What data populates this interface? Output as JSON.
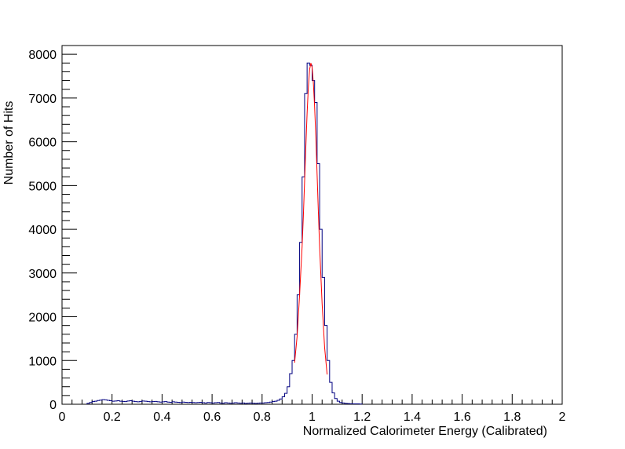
{
  "chart_data": {
    "type": "histogram",
    "title": "",
    "xlabel": "Normalized Calorimeter Energy (Calibrated)",
    "ylabel": "Number of Hits",
    "xlim": [
      0,
      2
    ],
    "ylim": [
      0,
      8200
    ],
    "x_ticks": [
      0,
      0.2,
      0.4,
      0.6,
      0.8,
      1,
      1.2,
      1.4,
      1.6,
      1.8,
      2
    ],
    "x_tick_labels": [
      "0",
      "0.2",
      "0.4",
      "0.6",
      "0.8",
      "1",
      "1.2",
      "1.4",
      "1.6",
      "1.8",
      "2"
    ],
    "y_ticks": [
      0,
      1000,
      2000,
      3000,
      4000,
      5000,
      6000,
      7000,
      8000
    ],
    "y_tick_labels": [
      "0",
      "1000",
      "2000",
      "3000",
      "4000",
      "5000",
      "6000",
      "7000",
      "8000"
    ],
    "grid": false,
    "legend": "none",
    "bin_width": 0.01,
    "series": [
      {
        "type": "step",
        "color": "#000080",
        "x": [
          0.1,
          0.11,
          0.12,
          0.13,
          0.14,
          0.15,
          0.16,
          0.17,
          0.18,
          0.19,
          0.2,
          0.21,
          0.22,
          0.23,
          0.24,
          0.25,
          0.26,
          0.27,
          0.28,
          0.29,
          0.3,
          0.31,
          0.32,
          0.33,
          0.34,
          0.35,
          0.36,
          0.37,
          0.38,
          0.39,
          0.4,
          0.41,
          0.42,
          0.43,
          0.44,
          0.45,
          0.46,
          0.47,
          0.48,
          0.49,
          0.5,
          0.51,
          0.52,
          0.53,
          0.54,
          0.55,
          0.56,
          0.57,
          0.58,
          0.59,
          0.6,
          0.61,
          0.62,
          0.63,
          0.64,
          0.65,
          0.66,
          0.67,
          0.68,
          0.69,
          0.7,
          0.71,
          0.72,
          0.73,
          0.74,
          0.75,
          0.76,
          0.77,
          0.78,
          0.79,
          0.8,
          0.81,
          0.82,
          0.83,
          0.84,
          0.85,
          0.86,
          0.87,
          0.88,
          0.89,
          0.9,
          0.91,
          0.92,
          0.93,
          0.94,
          0.95,
          0.96,
          0.97,
          0.98,
          0.99,
          1.0,
          1.01,
          1.02,
          1.03,
          1.04,
          1.05,
          1.06,
          1.07,
          1.08,
          1.09,
          1.1,
          1.11,
          1.12,
          1.13,
          1.14,
          1.15,
          1.16,
          1.17,
          1.18,
          1.19
        ],
        "y": [
          20,
          40,
          60,
          70,
          85,
          95,
          105,
          100,
          90,
          80,
          70,
          75,
          80,
          70,
          65,
          60,
          75,
          80,
          70,
          60,
          55,
          65,
          75,
          70,
          60,
          55,
          60,
          65,
          55,
          50,
          55,
          60,
          50,
          45,
          55,
          50,
          45,
          40,
          50,
          45,
          40,
          45,
          40,
          35,
          40,
          45,
          35,
          30,
          40,
          35,
          30,
          35,
          40,
          30,
          25,
          35,
          30,
          25,
          30,
          35,
          30,
          25,
          30,
          20,
          25,
          30,
          25,
          20,
          25,
          30,
          30,
          35,
          40,
          50,
          60,
          70,
          90,
          120,
          170,
          250,
          400,
          700,
          1000,
          1600,
          2500,
          3700,
          5200,
          7100,
          7800,
          7750,
          7400,
          6900,
          5500,
          4000,
          2900,
          1800,
          1000,
          500,
          260,
          130,
          70,
          40,
          30,
          20,
          15,
          12,
          10,
          10,
          8,
          5
        ]
      },
      {
        "type": "line",
        "color": "#ff0000",
        "x": [
          0.93,
          0.94,
          0.95,
          0.96,
          0.965,
          0.97,
          0.975,
          0.98,
          0.985,
          0.99,
          0.995,
          1.0,
          1.005,
          1.01,
          1.015,
          1.02,
          1.025,
          1.03,
          1.04,
          1.05,
          1.06
        ],
        "y": [
          950,
          1550,
          2500,
          3600,
          4300,
          5100,
          5900,
          6650,
          7250,
          7650,
          7800,
          7700,
          7350,
          6800,
          6100,
          5250,
          4400,
          3600,
          2300,
          1300,
          680
        ]
      }
    ]
  }
}
